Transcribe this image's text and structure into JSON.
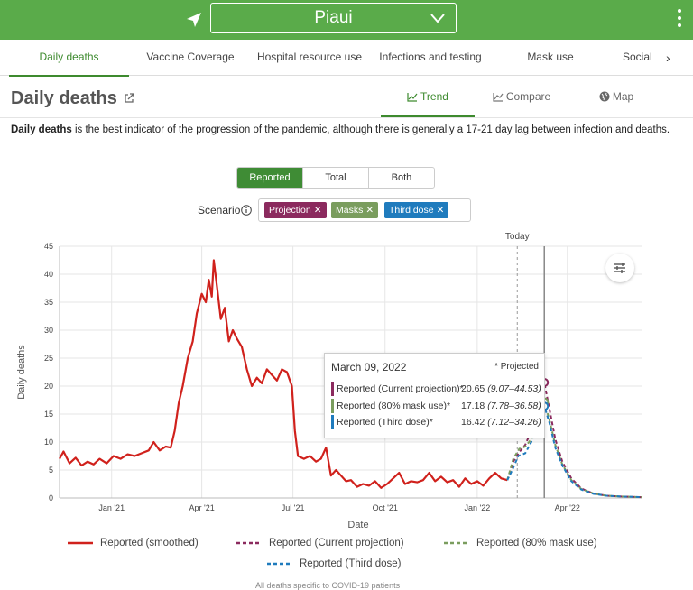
{
  "header": {
    "region": "Piaui",
    "colors": {
      "bar": "#5aab4a",
      "accent": "#3d8a2e"
    }
  },
  "tabs": [
    {
      "label": "Daily deaths",
      "active": true
    },
    {
      "label": "Vaccine Coverage"
    },
    {
      "label": "Hospital resource use"
    },
    {
      "label": "Infections and testing"
    },
    {
      "label": "Mask use"
    },
    {
      "label": "Social"
    }
  ],
  "page": {
    "title": "Daily deaths",
    "views": [
      {
        "label": "Trend",
        "active": true,
        "icon": "line-chart-icon"
      },
      {
        "label": "Compare",
        "icon": "compare-chart-icon"
      },
      {
        "label": "Map",
        "icon": "globe-icon"
      }
    ],
    "description_bold": "Daily deaths",
    "description_rest": " is the best indicator of the progression of the pandemic, although there is generally a 17-21 day lag between infection and deaths."
  },
  "display_toggle": [
    "Reported",
    "Total",
    "Both"
  ],
  "scenario": {
    "label": "Scenario",
    "chips": [
      {
        "label": "Projection",
        "color": "#8b2a5e"
      },
      {
        "label": "Masks",
        "color": "#7a9d5e"
      },
      {
        "label": "Third dose",
        "color": "#1f7bbd"
      }
    ]
  },
  "tooltip": {
    "date": "March 09, 2022",
    "note": "* Projected",
    "rows": [
      {
        "label": "Reported (Current projection)*",
        "value": "20.65",
        "range": "(9.07–44.53)",
        "color": "#8b2a5e"
      },
      {
        "label": "Reported (80% mask use)*",
        "value": "17.18",
        "range": "(7.78–36.58)",
        "color": "#7a9d5e"
      },
      {
        "label": "Reported (Third dose)*",
        "value": "16.42",
        "range": "(7.12–34.26)",
        "color": "#1f7bbd"
      }
    ]
  },
  "legend": [
    {
      "label": "Reported (smoothed)",
      "color": "#d0211c",
      "dash": "solid"
    },
    {
      "label": "Reported (Current projection)",
      "color": "#8b2a5e",
      "dash": "dashed"
    },
    {
      "label": "Reported (80% mask use)",
      "color": "#7a9d5e",
      "dash": "dashed"
    },
    {
      "label": "Reported (Third dose)",
      "color": "#1f7bbd",
      "dash": "dashed"
    }
  ],
  "footnote": "All deaths specific to COVID-19 patients",
  "chart_data": {
    "type": "line",
    "xlabel": "Date",
    "ylabel": "Daily deaths",
    "ylim": [
      0,
      45
    ],
    "yticks": [
      0,
      5,
      10,
      15,
      20,
      25,
      30,
      35,
      40,
      45
    ],
    "xlim": [
      "2020-11-10",
      "2022-06-15"
    ],
    "xticks": [
      {
        "date": "2021-01-01",
        "label": "Jan '21"
      },
      {
        "date": "2021-04-01",
        "label": "Apr '21"
      },
      {
        "date": "2021-07-01",
        "label": "Jul '21"
      },
      {
        "date": "2021-10-01",
        "label": "Oct '21"
      },
      {
        "date": "2022-01-01",
        "label": "Jan '22"
      },
      {
        "date": "2022-04-01",
        "label": "Apr '22"
      }
    ],
    "today": {
      "date": "2022-02-10",
      "label": "Today"
    },
    "highlight_date": "2022-03-09",
    "grid": true,
    "series": [
      {
        "name": "Reported (smoothed)",
        "color": "#d0211c",
        "dash": "solid",
        "points": [
          [
            "2020-11-10",
            7.0
          ],
          [
            "2020-11-14",
            8.3
          ],
          [
            "2020-11-20",
            6.2
          ],
          [
            "2020-11-26",
            7.2
          ],
          [
            "2020-12-02",
            5.8
          ],
          [
            "2020-12-08",
            6.5
          ],
          [
            "2020-12-14",
            6.0
          ],
          [
            "2020-12-20",
            7.0
          ],
          [
            "2020-12-27",
            6.2
          ],
          [
            "2021-01-03",
            7.5
          ],
          [
            "2021-01-10",
            7.0
          ],
          [
            "2021-01-17",
            7.8
          ],
          [
            "2021-01-24",
            7.5
          ],
          [
            "2021-01-31",
            8.0
          ],
          [
            "2021-02-07",
            8.5
          ],
          [
            "2021-02-12",
            10.0
          ],
          [
            "2021-02-18",
            8.5
          ],
          [
            "2021-02-24",
            9.2
          ],
          [
            "2021-03-01",
            9.0
          ],
          [
            "2021-03-05",
            12.0
          ],
          [
            "2021-03-09",
            17.0
          ],
          [
            "2021-03-13",
            20.0
          ],
          [
            "2021-03-18",
            25.0
          ],
          [
            "2021-03-23",
            28.0
          ],
          [
            "2021-03-27",
            33.0
          ],
          [
            "2021-04-01",
            36.5
          ],
          [
            "2021-04-05",
            35.0
          ],
          [
            "2021-04-08",
            39.0
          ],
          [
            "2021-04-11",
            36.0
          ],
          [
            "2021-04-13",
            42.5
          ],
          [
            "2021-04-16",
            38.0
          ],
          [
            "2021-04-20",
            32.0
          ],
          [
            "2021-04-24",
            34.0
          ],
          [
            "2021-04-28",
            28.0
          ],
          [
            "2021-05-02",
            30.0
          ],
          [
            "2021-05-06",
            28.5
          ],
          [
            "2021-05-11",
            27.0
          ],
          [
            "2021-05-16",
            23.0
          ],
          [
            "2021-05-21",
            20.0
          ],
          [
            "2021-05-26",
            21.5
          ],
          [
            "2021-05-31",
            20.5
          ],
          [
            "2021-06-05",
            23.0
          ],
          [
            "2021-06-10",
            22.0
          ],
          [
            "2021-06-15",
            21.0
          ],
          [
            "2021-06-20",
            23.0
          ],
          [
            "2021-06-25",
            22.5
          ],
          [
            "2021-06-30",
            20.0
          ],
          [
            "2021-07-03",
            12.0
          ],
          [
            "2021-07-06",
            7.5
          ],
          [
            "2021-07-12",
            7.0
          ],
          [
            "2021-07-18",
            7.5
          ],
          [
            "2021-07-24",
            6.5
          ],
          [
            "2021-07-29",
            7.0
          ],
          [
            "2021-08-03",
            9.0
          ],
          [
            "2021-08-08",
            4.0
          ],
          [
            "2021-08-13",
            5.0
          ],
          [
            "2021-08-18",
            4.0
          ],
          [
            "2021-08-23",
            3.0
          ],
          [
            "2021-08-28",
            3.2
          ],
          [
            "2021-09-03",
            2.0
          ],
          [
            "2021-09-09",
            2.5
          ],
          [
            "2021-09-15",
            2.2
          ],
          [
            "2021-09-21",
            3.0
          ],
          [
            "2021-09-27",
            1.8
          ],
          [
            "2021-10-03",
            2.5
          ],
          [
            "2021-10-09",
            3.5
          ],
          [
            "2021-10-15",
            4.5
          ],
          [
            "2021-10-21",
            2.5
          ],
          [
            "2021-10-27",
            3.0
          ],
          [
            "2021-11-02",
            2.8
          ],
          [
            "2021-11-08",
            3.2
          ],
          [
            "2021-11-14",
            4.5
          ],
          [
            "2021-11-20",
            3.0
          ],
          [
            "2021-11-26",
            3.8
          ],
          [
            "2021-12-02",
            2.8
          ],
          [
            "2021-12-08",
            3.2
          ],
          [
            "2021-12-14",
            2.0
          ],
          [
            "2021-12-20",
            3.5
          ],
          [
            "2021-12-26",
            2.5
          ],
          [
            "2022-01-01",
            3.0
          ],
          [
            "2022-01-07",
            2.2
          ],
          [
            "2022-01-13",
            3.5
          ],
          [
            "2022-01-19",
            4.5
          ],
          [
            "2022-01-25",
            3.5
          ],
          [
            "2022-01-31",
            3.2
          ]
        ]
      },
      {
        "name": "Reported (Current projection)",
        "color": "#8b2a5e",
        "dash": "dashed",
        "points": [
          [
            "2022-01-31",
            3.2
          ],
          [
            "2022-02-06",
            6.5
          ],
          [
            "2022-02-12",
            8.2
          ],
          [
            "2022-02-18",
            9.5
          ],
          [
            "2022-02-24",
            12.0
          ],
          [
            "2022-03-02",
            16.0
          ],
          [
            "2022-03-09",
            20.65
          ],
          [
            "2022-03-14",
            16.0
          ],
          [
            "2022-03-20",
            10.5
          ],
          [
            "2022-03-27",
            6.5
          ],
          [
            "2022-04-05",
            3.5
          ],
          [
            "2022-04-15",
            1.7
          ],
          [
            "2022-04-27",
            0.8
          ],
          [
            "2022-05-10",
            0.4
          ],
          [
            "2022-05-25",
            0.25
          ],
          [
            "2022-06-15",
            0.15
          ]
        ]
      },
      {
        "name": "Reported (80% mask use)",
        "color": "#7a9d5e",
        "dash": "dashed",
        "points": [
          [
            "2022-01-31",
            3.2
          ],
          [
            "2022-02-06",
            7.0
          ],
          [
            "2022-02-12",
            8.8
          ],
          [
            "2022-02-18",
            9.2
          ],
          [
            "2022-02-24",
            10.5
          ],
          [
            "2022-03-02",
            14.0
          ],
          [
            "2022-03-09",
            17.18
          ],
          [
            "2022-03-14",
            14.0
          ],
          [
            "2022-03-20",
            9.5
          ],
          [
            "2022-03-27",
            6.0
          ],
          [
            "2022-04-05",
            3.2
          ],
          [
            "2022-04-15",
            1.6
          ],
          [
            "2022-04-27",
            0.8
          ],
          [
            "2022-05-10",
            0.4
          ],
          [
            "2022-05-25",
            0.25
          ],
          [
            "2022-06-15",
            0.15
          ]
        ]
      },
      {
        "name": "Reported (Third dose)",
        "color": "#1f7bbd",
        "dash": "dashed",
        "points": [
          [
            "2022-01-31",
            3.2
          ],
          [
            "2022-02-05",
            5.0
          ],
          [
            "2022-02-11",
            7.5
          ],
          [
            "2022-02-18",
            8.0
          ],
          [
            "2022-02-24",
            10.0
          ],
          [
            "2022-03-02",
            13.5
          ],
          [
            "2022-03-09",
            16.42
          ],
          [
            "2022-03-14",
            13.5
          ],
          [
            "2022-03-20",
            9.0
          ],
          [
            "2022-03-27",
            5.8
          ],
          [
            "2022-04-05",
            3.0
          ],
          [
            "2022-04-15",
            1.5
          ],
          [
            "2022-04-27",
            0.75
          ],
          [
            "2022-05-10",
            0.4
          ],
          [
            "2022-05-25",
            0.25
          ],
          [
            "2022-06-15",
            0.15
          ]
        ]
      }
    ]
  }
}
